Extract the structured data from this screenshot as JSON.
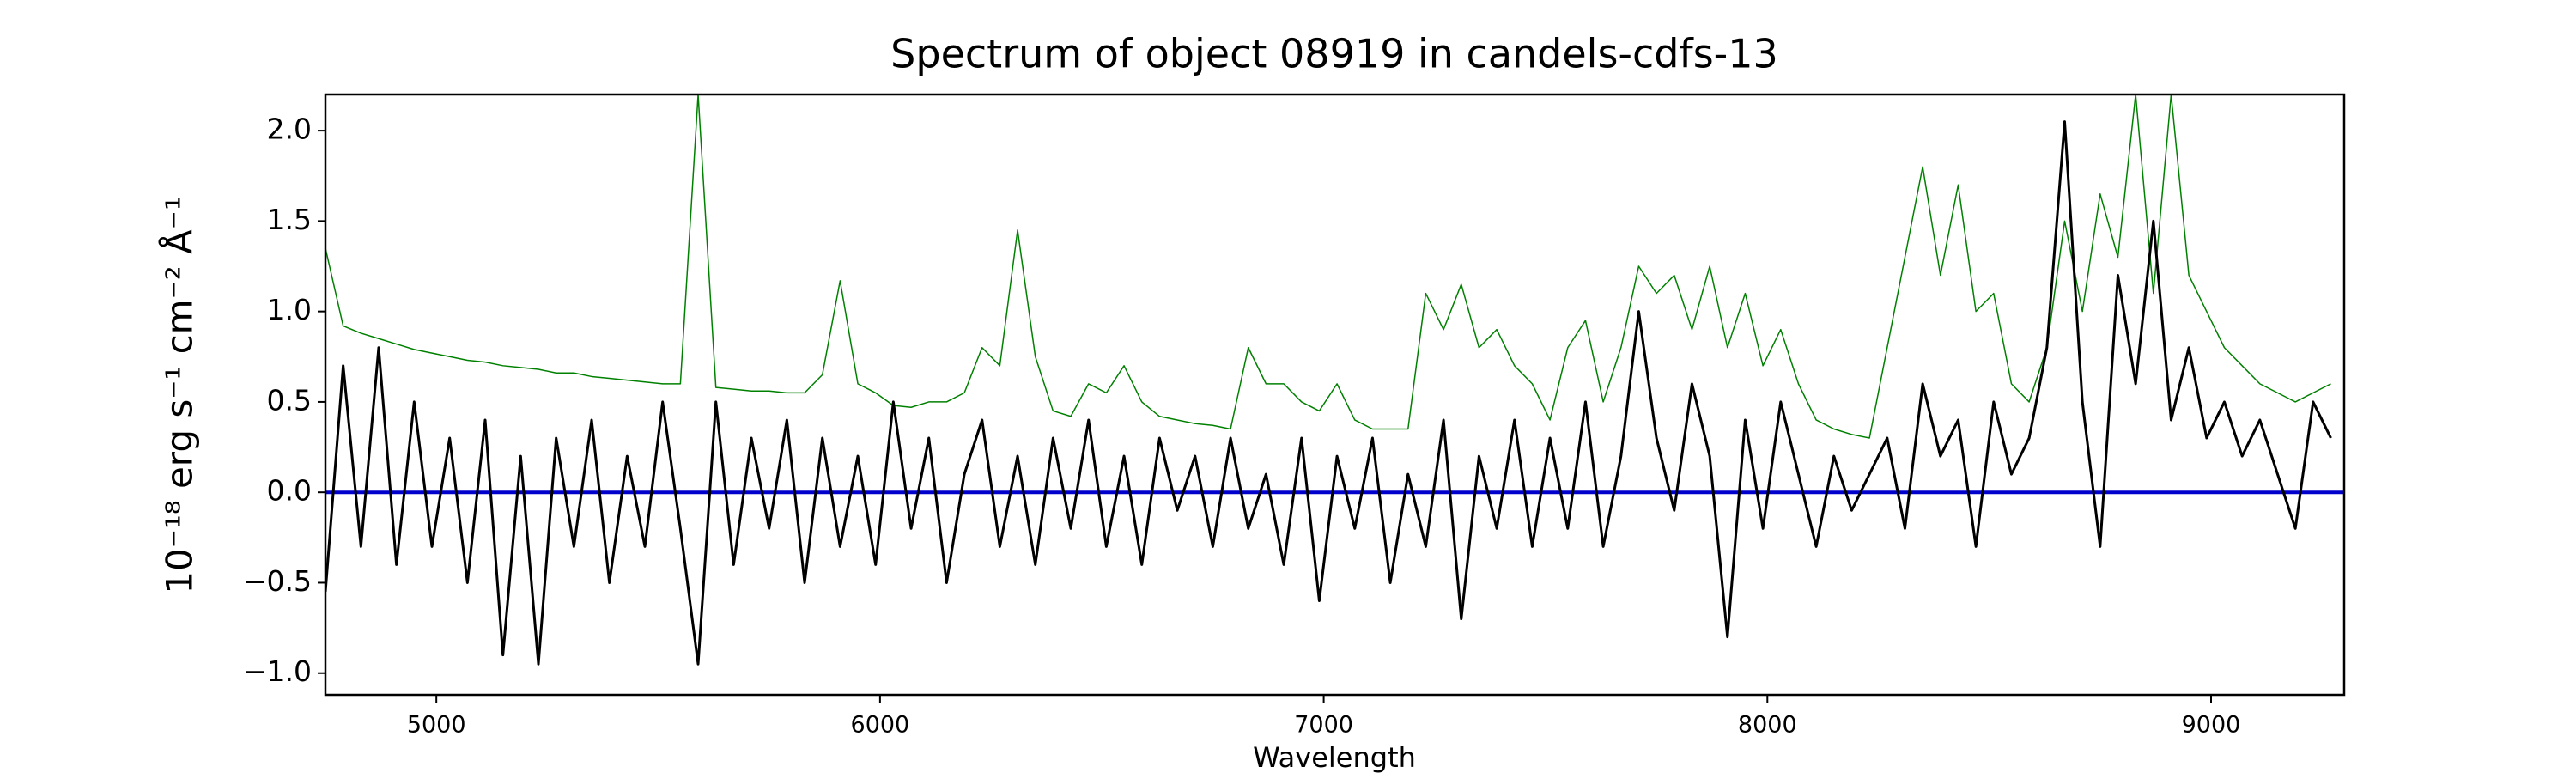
{
  "chart_data": {
    "type": "line",
    "title": "Spectrum of object 08919 in candels-cdfs-13",
    "xlabel": "Wavelength",
    "ylabel": "10⁻¹⁸ erg s⁻¹ cm⁻² Å⁻¹",
    "xlim": [
      4750,
      9300
    ],
    "ylim": [
      -1.12,
      2.2
    ],
    "xticks": [
      5000,
      6000,
      7000,
      8000,
      9000
    ],
    "yticks": [
      {
        "value": -1.0,
        "label": "−1.0"
      },
      {
        "value": -0.5,
        "label": "−0.5"
      },
      {
        "value": 0.0,
        "label": "0.0"
      },
      {
        "value": 0.5,
        "label": "0.5"
      },
      {
        "value": 1.0,
        "label": "1.0"
      },
      {
        "value": 1.5,
        "label": "1.5"
      },
      {
        "value": 2.0,
        "label": "2.0"
      }
    ],
    "grid": false,
    "x": [
      4750,
      4790,
      4830,
      4870,
      4910,
      4950,
      4990,
      5030,
      5070,
      5110,
      5150,
      5190,
      5230,
      5270,
      5310,
      5350,
      5390,
      5430,
      5470,
      5510,
      5550,
      5590,
      5630,
      5670,
      5710,
      5750,
      5790,
      5830,
      5870,
      5910,
      5950,
      5990,
      6030,
      6070,
      6110,
      6150,
      6190,
      6230,
      6270,
      6310,
      6350,
      6390,
      6430,
      6470,
      6510,
      6550,
      6590,
      6630,
      6670,
      6710,
      6750,
      6790,
      6830,
      6870,
      6910,
      6950,
      6990,
      7030,
      7070,
      7110,
      7150,
      7190,
      7230,
      7270,
      7310,
      7350,
      7390,
      7430,
      7470,
      7510,
      7550,
      7590,
      7630,
      7670,
      7710,
      7750,
      7790,
      7830,
      7870,
      7910,
      7950,
      7990,
      8030,
      8070,
      8110,
      8150,
      8190,
      8230,
      8270,
      8310,
      8350,
      8390,
      8430,
      8470,
      8510,
      8550,
      8590,
      8630,
      8670,
      8710,
      8750,
      8790,
      8830,
      8870,
      8910,
      8950,
      8990,
      9030,
      9070,
      9110,
      9150,
      9190,
      9230,
      9270
    ],
    "series": [
      {
        "color": "#008000",
        "width": 1.5,
        "values": [
          1.35,
          0.92,
          0.88,
          0.85,
          0.82,
          0.79,
          0.77,
          0.75,
          0.73,
          0.72,
          0.7,
          0.69,
          0.68,
          0.66,
          0.66,
          0.64,
          0.63,
          0.62,
          0.61,
          0.6,
          0.6,
          2.2,
          0.58,
          0.57,
          0.56,
          0.56,
          0.55,
          0.55,
          0.65,
          1.17,
          0.6,
          0.55,
          0.48,
          0.47,
          0.5,
          0.5,
          0.55,
          0.8,
          0.7,
          1.45,
          0.75,
          0.45,
          0.42,
          0.6,
          0.55,
          0.7,
          0.5,
          0.42,
          0.4,
          0.38,
          0.37,
          0.35,
          0.8,
          0.6,
          0.6,
          0.5,
          0.45,
          0.6,
          0.4,
          0.35,
          0.35,
          0.35,
          1.1,
          0.9,
          1.15,
          0.8,
          0.9,
          0.7,
          0.6,
          0.4,
          0.8,
          0.95,
          0.5,
          0.8,
          1.25,
          1.1,
          1.2,
          0.9,
          1.25,
          0.8,
          1.1,
          0.7,
          0.9,
          0.6,
          0.4,
          0.35,
          0.32,
          0.3,
          0.8,
          1.3,
          1.8,
          1.2,
          1.7,
          1.0,
          1.1,
          0.6,
          0.5,
          0.8,
          1.5,
          1.0,
          1.65,
          1.3,
          2.2,
          1.1,
          2.2,
          1.2,
          1.0,
          0.8,
          0.7,
          0.6,
          0.55,
          0.5,
          0.55,
          0.6
        ]
      },
      {
        "color": "#0000cc",
        "width": 4,
        "x": [
          4750,
          9300
        ],
        "values": [
          0,
          0
        ]
      },
      {
        "color": "#000000",
        "width": 3,
        "values": [
          -0.55,
          0.7,
          -0.3,
          0.8,
          -0.4,
          0.5,
          -0.3,
          0.3,
          -0.5,
          0.4,
          -0.9,
          0.2,
          -0.95,
          0.3,
          -0.3,
          0.4,
          -0.5,
          0.2,
          -0.3,
          0.5,
          -0.2,
          -0.95,
          0.5,
          -0.4,
          0.3,
          -0.2,
          0.4,
          -0.5,
          0.3,
          -0.3,
          0.2,
          -0.4,
          0.5,
          -0.2,
          0.3,
          -0.5,
          0.1,
          0.4,
          -0.3,
          0.2,
          -0.4,
          0.3,
          -0.2,
          0.4,
          -0.3,
          0.2,
          -0.4,
          0.3,
          -0.1,
          0.2,
          -0.3,
          0.3,
          -0.2,
          0.1,
          -0.4,
          0.3,
          -0.6,
          0.2,
          -0.2,
          0.3,
          -0.5,
          0.1,
          -0.3,
          0.4,
          -0.7,
          0.2,
          -0.2,
          0.4,
          -0.3,
          0.3,
          -0.2,
          0.5,
          -0.3,
          0.2,
          1.0,
          0.3,
          -0.1,
          0.6,
          0.2,
          -0.8,
          0.4,
          -0.2,
          0.5,
          0.1,
          -0.3,
          0.2,
          -0.1,
          0.1,
          0.3,
          -0.2,
          0.6,
          0.2,
          0.4,
          -0.3,
          0.5,
          0.1,
          0.3,
          0.8,
          2.05,
          0.5,
          -0.3,
          1.2,
          0.6,
          1.5,
          0.4,
          0.8,
          0.3,
          0.5,
          0.2,
          0.4,
          0.1,
          -0.2,
          0.5,
          0.3
        ]
      }
    ]
  }
}
